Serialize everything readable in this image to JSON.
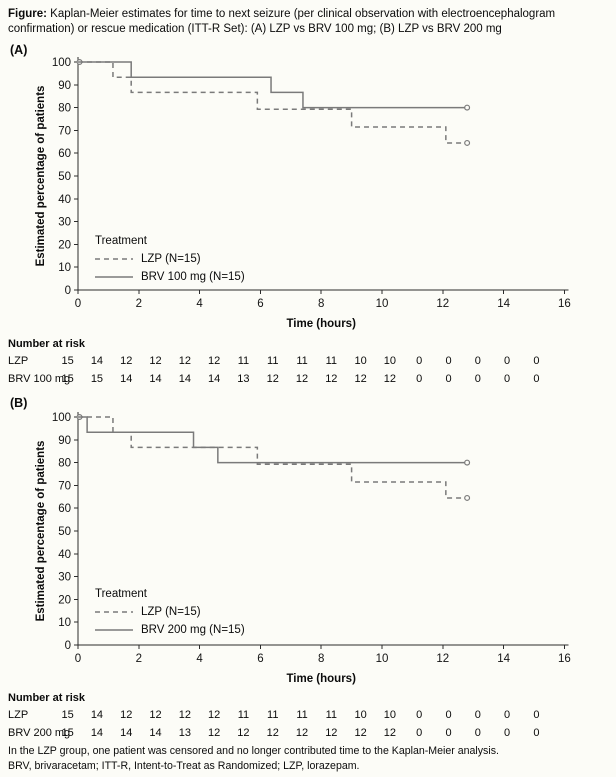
{
  "figure_title": {
    "bold": "Figure:",
    "rest": " Kaplan-Meier estimates for time to next seizure (per clinical observation with electroencephalogram confirmation) or rescue medication (ITT-R Set): (A) LZP vs BRV 100 mg; (B) LZP vs BRV 200 mg"
  },
  "colors": {
    "curve": "#7a7a7a",
    "axis": "#2b2b2b",
    "text": "#0b0b0b",
    "background": "#fcfcf7"
  },
  "chart_data": [
    {
      "panel": "(A)",
      "type": "line",
      "subtype": "kaplan-meier-step",
      "xlabel": "Time (hours)",
      "ylabel": "Estimated percentage of patients",
      "xlim": [
        0,
        16
      ],
      "ylim": [
        0,
        100
      ],
      "xtick_step": 2,
      "ytick_step": 10,
      "grid": false,
      "legend": {
        "title": "Treatment",
        "position": "lower-left"
      },
      "series": [
        {
          "name": "LZP (N=15)",
          "style": "dashed",
          "steps": [
            [
              0,
              100
            ],
            [
              1.15,
              93.3
            ],
            [
              1.75,
              86.7
            ],
            [
              5.9,
              79.3
            ],
            [
              9.0,
              71.5
            ],
            [
              12.1,
              64.5
            ]
          ],
          "end": [
            12.8,
            64.5
          ],
          "censor_points": [
            [
              0.05,
              100
            ],
            [
              12.8,
              64.5
            ]
          ]
        },
        {
          "name": "BRV 100 mg (N=15)",
          "style": "solid",
          "steps": [
            [
              0,
              100
            ],
            [
              1.75,
              93.3
            ],
            [
              6.35,
              86.7
            ],
            [
              7.4,
              80
            ]
          ],
          "end": [
            12.8,
            80
          ],
          "censor_points": [
            [
              12.8,
              80
            ]
          ]
        }
      ],
      "risk_table": {
        "title": "Number at risk",
        "time_points": [
          0,
          1,
          2,
          3,
          4,
          5,
          6,
          7,
          8,
          9,
          10,
          11,
          12,
          13,
          14,
          15,
          16
        ],
        "rows": [
          {
            "label": "LZP",
            "counts": [
              15,
              14,
              12,
              12,
              12,
              12,
              11,
              11,
              11,
              11,
              10,
              10,
              0,
              0,
              0,
              0,
              0
            ]
          },
          {
            "label": "BRV 100 mg",
            "counts": [
              15,
              15,
              14,
              14,
              14,
              14,
              13,
              12,
              12,
              12,
              12,
              12,
              0,
              0,
              0,
              0,
              0
            ]
          }
        ]
      }
    },
    {
      "panel": "(B)",
      "type": "line",
      "subtype": "kaplan-meier-step",
      "xlabel": "Time (hours)",
      "ylabel": "Estimated percentage of patients",
      "xlim": [
        0,
        16
      ],
      "ylim": [
        0,
        100
      ],
      "xtick_step": 2,
      "ytick_step": 10,
      "grid": false,
      "legend": {
        "title": "Treatment",
        "position": "lower-left"
      },
      "series": [
        {
          "name": "LZP (N=15)",
          "style": "dashed",
          "steps": [
            [
              0,
              100
            ],
            [
              1.15,
              93.3
            ],
            [
              1.75,
              86.7
            ],
            [
              5.9,
              79.3
            ],
            [
              9.0,
              71.5
            ],
            [
              12.1,
              64.5
            ]
          ],
          "end": [
            12.8,
            64.5
          ],
          "censor_points": [
            [
              0.05,
              100
            ],
            [
              12.8,
              64.5
            ]
          ]
        },
        {
          "name": "BRV 200 mg (N=15)",
          "style": "solid",
          "steps": [
            [
              0,
              100
            ],
            [
              0.3,
              93.3
            ],
            [
              3.8,
              86.7
            ],
            [
              4.6,
              80
            ]
          ],
          "end": [
            12.8,
            80
          ],
          "censor_points": [
            [
              12.8,
              80
            ]
          ]
        }
      ],
      "risk_table": {
        "title": "Number at risk",
        "time_points": [
          0,
          1,
          2,
          3,
          4,
          5,
          6,
          7,
          8,
          9,
          10,
          11,
          12,
          13,
          14,
          15,
          16
        ],
        "rows": [
          {
            "label": "LZP",
            "counts": [
              15,
              14,
              12,
              12,
              12,
              12,
              11,
              11,
              11,
              11,
              10,
              10,
              0,
              0,
              0,
              0,
              0
            ]
          },
          {
            "label": "BRV 200 mg",
            "counts": [
              15,
              14,
              14,
              14,
              13,
              12,
              12,
              12,
              12,
              12,
              12,
              12,
              0,
              0,
              0,
              0,
              0
            ]
          }
        ]
      }
    }
  ],
  "footnotes": [
    "In the LZP group, one patient was censored and no longer contributed time to the Kaplan-Meier analysis.",
    "BRV, brivaracetam; ITT-R, Intent-to-Treat as Randomized; LZP, lorazepam."
  ]
}
